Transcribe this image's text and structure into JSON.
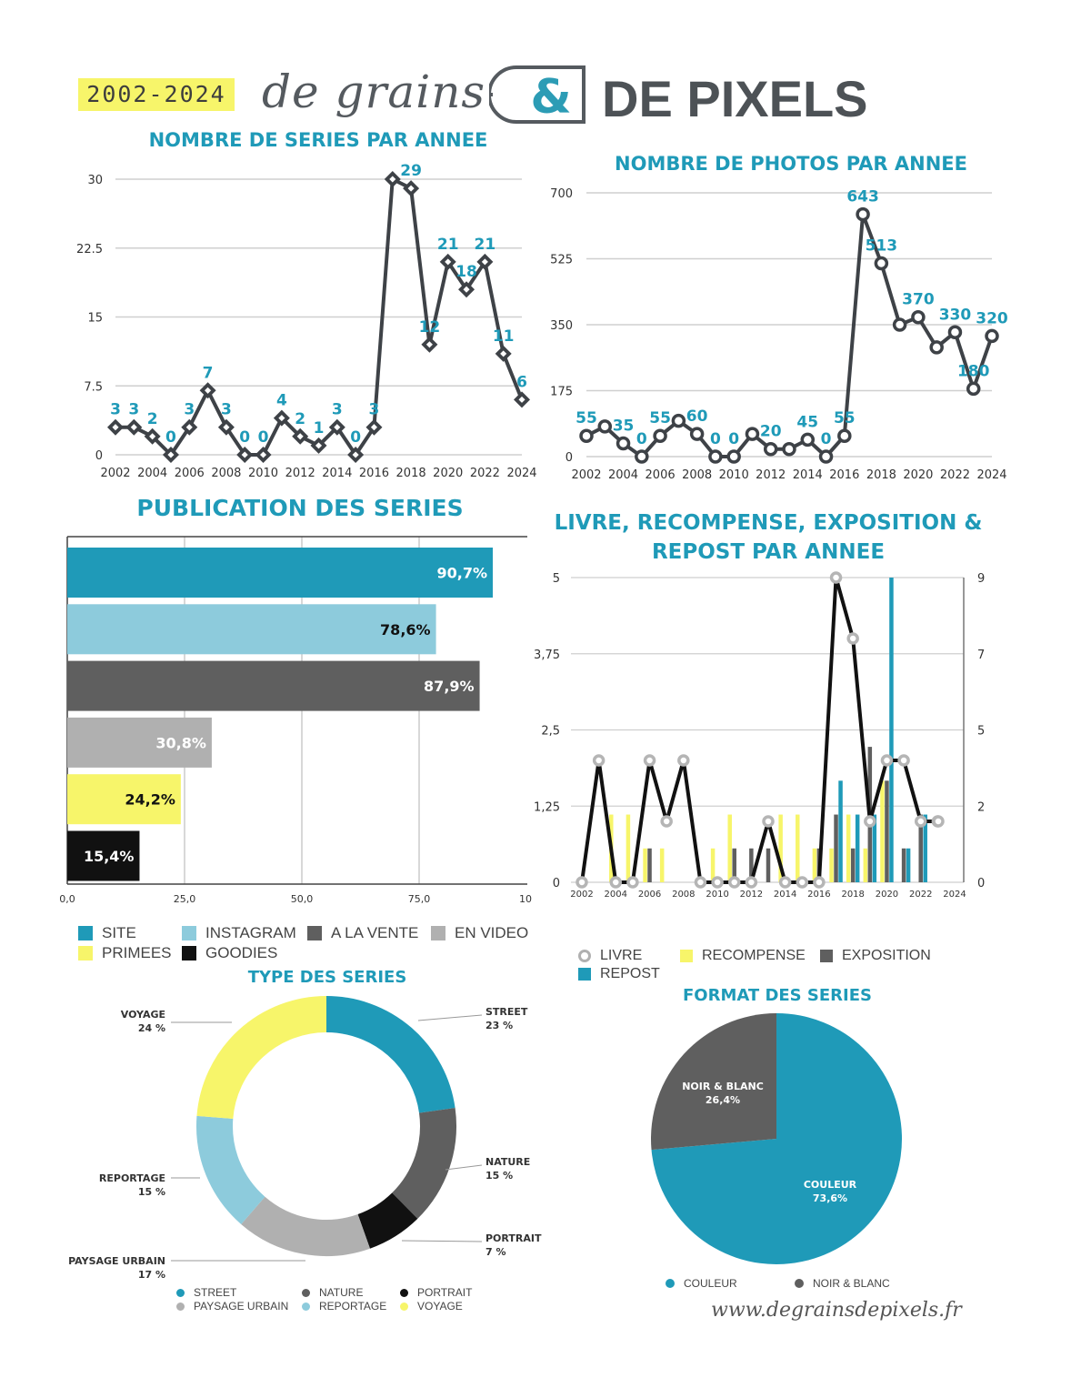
{
  "header": {
    "years": "2002-2024",
    "brand_script": "de grains",
    "brand_amp": "&",
    "brand_bold": "DE PIXELS"
  },
  "colors": {
    "teal": "#1f9ab8",
    "light_blue": "#8dcbdc",
    "dark_gray": "#5f5f5f",
    "mid_gray": "#b0b0b0",
    "yellow": "#f7f56a",
    "black": "#111111",
    "line": "#3e4247"
  },
  "charts": {
    "series_title": "NOMBRE DE SERIES PAR ANNEE",
    "photos_title": "NOMBRE DE PHOTOS PAR ANNEE",
    "publication_title": "PUBLICATION DES SERIES",
    "lrer_title_1": "LIVRE, RECOMPENSE, EXPOSITION &",
    "lrer_title_2": "REPOST PAR ANNEE",
    "type_title": "TYPE DES SERIES",
    "format_title": "FORMAT DES SERIES"
  },
  "footer": {
    "url": "www.degrainsdepixels.fr"
  },
  "chart_data": [
    {
      "id": "series",
      "type": "line",
      "title": "NOMBRE DE SERIES PAR ANNEE",
      "x": [
        2002,
        2003,
        2004,
        2005,
        2006,
        2007,
        2008,
        2009,
        2010,
        2011,
        2012,
        2013,
        2014,
        2015,
        2016,
        2017,
        2018,
        2019,
        2020,
        2021,
        2022,
        2023,
        2024
      ],
      "y": [
        3,
        3,
        2,
        0,
        3,
        7,
        3,
        0,
        0,
        4,
        2,
        1,
        3,
        0,
        3,
        30,
        29,
        12,
        21,
        18,
        21,
        11,
        6
      ],
      "point_labels": [
        "3",
        "3",
        "2",
        "0",
        "3",
        "7",
        "3",
        "0",
        "0",
        "4",
        "2",
        "1",
        "3",
        "0",
        "3",
        "",
        "29",
        "12",
        "21",
        "18",
        "21",
        "11",
        "6"
      ],
      "xticks": [
        "2002",
        "2004",
        "2006",
        "2008",
        "2010",
        "2012",
        "2014",
        "2016",
        "2018",
        "2020",
        "2022",
        "2024"
      ],
      "yticks": [
        "0",
        "7.5",
        "15",
        "22.5",
        "30"
      ],
      "ylim": [
        0,
        30
      ],
      "marker": "diamond",
      "grid": true
    },
    {
      "id": "photos",
      "type": "line",
      "title": "NOMBRE DE PHOTOS PAR ANNEE",
      "x": [
        2002,
        2003,
        2004,
        2005,
        2006,
        2007,
        2008,
        2009,
        2010,
        2011,
        2012,
        2013,
        2014,
        2015,
        2016,
        2017,
        2018,
        2019,
        2020,
        2021,
        2022,
        2023,
        2024
      ],
      "y": [
        55,
        80,
        35,
        0,
        55,
        95,
        60,
        0,
        0,
        60,
        20,
        20,
        45,
        0,
        55,
        643,
        513,
        350,
        370,
        290,
        330,
        180,
        320
      ],
      "point_labels": [
        "55",
        "",
        "35",
        "0",
        "55",
        "",
        "60",
        "0",
        "0",
        "",
        "20",
        "",
        "45",
        "0",
        "55",
        "643",
        "513",
        "",
        "370",
        "",
        "330",
        "180",
        "320"
      ],
      "xticks": [
        "2002",
        "2004",
        "2006",
        "2008",
        "2010",
        "2012",
        "2014",
        "2016",
        "2018",
        "2020",
        "2022",
        "2024"
      ],
      "yticks": [
        "0",
        "175",
        "350",
        "525",
        "700"
      ],
      "ylim": [
        0,
        700
      ],
      "marker": "circle",
      "grid": true
    },
    {
      "id": "publication",
      "type": "bar",
      "orientation": "horizontal",
      "title": "PUBLICATION DES SERIES",
      "categories": [
        "SITE",
        "INSTAGRAM",
        "A LA VENTE",
        "EN VIDEO",
        "PRIMEES",
        "GOODIES"
      ],
      "values": [
        90.7,
        78.6,
        87.9,
        30.8,
        24.2,
        15.4
      ],
      "value_labels": [
        "90,7%",
        "78,6%",
        "87,9%",
        "30,8%",
        "24,2%",
        "15,4%"
      ],
      "colors": [
        "#1f9ab8",
        "#8dcbdc",
        "#5f5f5f",
        "#b0b0b0",
        "#f7f56a",
        "#111111"
      ],
      "xticks": [
        "0,0",
        "25,0",
        "50,0",
        "75,0",
        "10"
      ],
      "xlim": [
        0,
        100
      ],
      "legend": [
        {
          "label": "SITE",
          "color": "#1f9ab8"
        },
        {
          "label": "INSTAGRAM",
          "color": "#8dcbdc"
        },
        {
          "label": "A LA VENTE",
          "color": "#5f5f5f"
        },
        {
          "label": "EN VIDEO",
          "color": "#b0b0b0"
        },
        {
          "label": "PRIMEES",
          "color": "#f7f56a"
        },
        {
          "label": "GOODIES",
          "color": "#111111"
        }
      ],
      "grid": true
    },
    {
      "id": "lrer",
      "type": "bar",
      "title": "LIVRE, RECOMPENSE, EXPOSITION & REPOST PAR ANNEE",
      "x": [
        2002,
        2003,
        2004,
        2005,
        2006,
        2007,
        2008,
        2009,
        2010,
        2011,
        2012,
        2013,
        2014,
        2015,
        2016,
        2017,
        2018,
        2019,
        2020,
        2021,
        2022,
        2023,
        2024
      ],
      "xticks": [
        "2002",
        "2004",
        "2006",
        "2008",
        "2010",
        "2012",
        "2014",
        "2016",
        "2018",
        "2020",
        "2022",
        "2024"
      ],
      "yticks_left": [
        "0",
        "1,25",
        "2,5",
        "3,75",
        "5"
      ],
      "yticks_right": [
        "0",
        "2",
        "5",
        "7",
        "9"
      ],
      "ylim_left": [
        0,
        5
      ],
      "ylim_right": [
        0,
        9
      ],
      "series": [
        {
          "name": "LIVRE",
          "kind": "line",
          "axis": "left",
          "color": "#111111",
          "values": [
            0,
            2,
            0,
            0,
            2,
            1,
            2,
            0,
            0,
            0,
            0,
            1,
            0,
            0,
            0,
            5,
            4,
            1,
            2,
            2,
            1,
            1,
            null
          ]
        },
        {
          "name": "RECOMPENSE",
          "kind": "bar",
          "axis": "right",
          "color": "#f7f56a",
          "values": [
            0,
            0,
            2,
            2,
            1,
            1,
            0,
            0,
            1,
            2,
            0,
            0,
            2,
            2,
            1,
            1,
            2,
            1,
            3,
            0,
            0,
            0,
            0
          ]
        },
        {
          "name": "EXPOSITION",
          "kind": "bar",
          "axis": "right",
          "color": "#5f5f5f",
          "values": [
            0,
            0,
            0,
            0,
            1,
            0,
            0,
            0,
            0,
            1,
            1,
            1,
            0,
            0,
            1,
            2,
            1,
            4,
            3,
            1,
            2,
            0,
            0
          ]
        },
        {
          "name": "REPOST",
          "kind": "bar",
          "axis": "right",
          "color": "#1f9ab8",
          "values": [
            0,
            0,
            0,
            0,
            0,
            0,
            0,
            0,
            0,
            0,
            0,
            0,
            0,
            0,
            0,
            3,
            2,
            2,
            9,
            1,
            2,
            0,
            0
          ]
        }
      ],
      "legend": [
        {
          "label": "LIVRE",
          "color": "#b0b0b0",
          "symbol": "ring"
        },
        {
          "label": "RECOMPENSE",
          "color": "#f7f56a",
          "symbol": "square"
        },
        {
          "label": "EXPOSITION",
          "color": "#5f5f5f",
          "symbol": "square"
        },
        {
          "label": "REPOST",
          "color": "#1f9ab8",
          "symbol": "square"
        }
      ]
    },
    {
      "id": "type",
      "type": "pie",
      "donut": true,
      "title": "TYPE DES SERIES",
      "slices": [
        {
          "label": "STREET",
          "value": 23,
          "pct": "23 %",
          "color": "#1f9ab8"
        },
        {
          "label": "NATURE",
          "value": 15,
          "pct": "15 %",
          "color": "#5f5f5f"
        },
        {
          "label": "PORTRAIT",
          "value": 7,
          "pct": "7 %",
          "color": "#111111"
        },
        {
          "label": "PAYSAGE URBAIN",
          "value": 17,
          "pct": "17 %",
          "color": "#b0b0b0"
        },
        {
          "label": "REPORTAGE",
          "value": 15,
          "pct": "15 %",
          "color": "#8dcbdc"
        },
        {
          "label": "VOYAGE",
          "value": 24,
          "pct": "24 %",
          "color": "#f7f56a"
        }
      ],
      "legend": [
        {
          "label": "STREET",
          "color": "#1f9ab8"
        },
        {
          "label": "NATURE",
          "color": "#5f5f5f"
        },
        {
          "label": "PORTRAIT",
          "color": "#111111"
        },
        {
          "label": "PAYSAGE URBAIN",
          "color": "#b0b0b0"
        },
        {
          "label": "REPORTAGE",
          "color": "#8dcbdc"
        },
        {
          "label": "VOYAGE",
          "color": "#f7f56a"
        }
      ]
    },
    {
      "id": "format",
      "type": "pie",
      "title": "FORMAT DES SERIES",
      "slices": [
        {
          "label": "COULEUR",
          "value": 73.6,
          "pct": "73,6%",
          "color": "#1f9ab8"
        },
        {
          "label": "NOIR & BLANC",
          "value": 26.4,
          "pct": "26,4%",
          "color": "#5f5f5f"
        }
      ],
      "legend": [
        {
          "label": "COULEUR",
          "color": "#1f9ab8"
        },
        {
          "label": "NOIR & BLANC",
          "color": "#5f5f5f"
        }
      ]
    }
  ]
}
